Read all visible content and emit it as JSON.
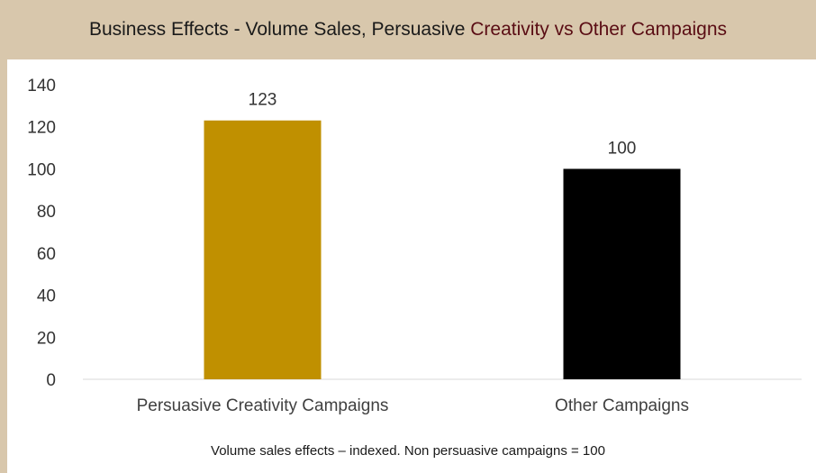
{
  "colors": {
    "header_bg": "#d8c7ac",
    "title_accent": "#5a0d14",
    "bar_primary": "#c09000",
    "bar_other": "#000000"
  },
  "chart_data": {
    "type": "bar",
    "title_part1": "Business Effects - Volume Sales, Persuasive ",
    "title_part2": "Creativity vs Other Campaigns",
    "categories": [
      "Persuasive Creativity Campaigns",
      "Other Campaigns"
    ],
    "values": [
      123,
      100
    ],
    "bar_colors": [
      "#c09000",
      "#000000"
    ],
    "ylim": [
      0,
      140
    ],
    "yticks": [
      0,
      20,
      40,
      60,
      80,
      100,
      120,
      140
    ],
    "grid": false,
    "legend": "none",
    "xlabel": "",
    "ylabel": "",
    "footnote": "Volume sales effects – indexed. Non persuasive campaigns = 100"
  }
}
